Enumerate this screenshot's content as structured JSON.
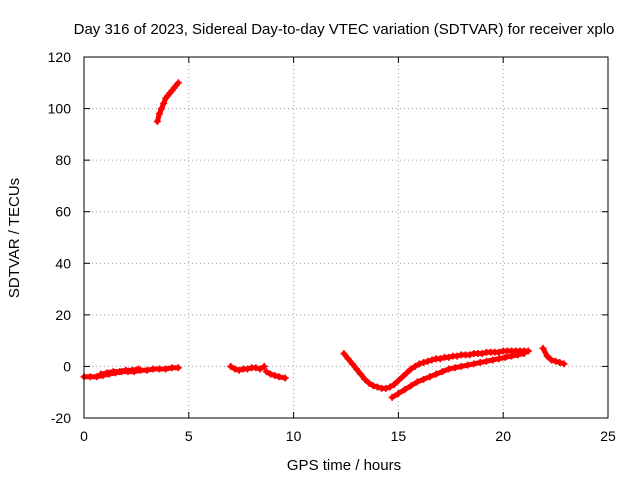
{
  "chart_data": {
    "type": "scatter",
    "title": "Day 316 of 2023, Sidereal Day-to-day VTEC variation (SDTVAR) for receiver xplo",
    "xlabel": "GPS time / hours",
    "ylabel": "SDTVAR / TECUs",
    "xlim": [
      0,
      25
    ],
    "ylim": [
      -20,
      120
    ],
    "xticks": [
      "0",
      "5",
      "10",
      "15",
      "20",
      "25"
    ],
    "yticks": [
      "-20",
      "0",
      "20",
      "40",
      "60",
      "80",
      "100",
      "120"
    ],
    "grid": true,
    "marker": "+",
    "color": "#ff0000",
    "series": [
      {
        "name": "arc-high",
        "x": [
          3.5,
          3.6,
          3.7,
          3.8,
          3.9,
          4.0,
          4.1,
          4.2,
          4.3,
          4.4,
          4.5
        ],
        "y": [
          95,
          98,
          100,
          102,
          104,
          105,
          106,
          107,
          108,
          109,
          110
        ]
      },
      {
        "name": "arc-low-1",
        "x": [
          0.0,
          0.3,
          0.6,
          0.9,
          1.2,
          1.5,
          1.8,
          2.1,
          2.4,
          2.7,
          3.0,
          3.3,
          3.6,
          3.9,
          4.2,
          4.5
        ],
        "y": [
          -4,
          -4,
          -4,
          -3.5,
          -3,
          -2.5,
          -2,
          -2,
          -2,
          -1.5,
          -1.5,
          -1,
          -1,
          -1,
          -0.5,
          -0.5
        ]
      },
      {
        "name": "arc-low-2",
        "x": [
          0.8,
          1.1,
          1.4,
          1.7,
          2.0,
          2.3,
          2.6
        ],
        "y": [
          -3,
          -2.5,
          -2,
          -2,
          -1.5,
          -1.5,
          -1
        ]
      },
      {
        "name": "arc-7h",
        "x": [
          7.0,
          7.2,
          7.4,
          7.6,
          7.8,
          8.0,
          8.2,
          8.4,
          8.6
        ],
        "y": [
          0,
          -1,
          -1.5,
          -1,
          -1,
          -0.5,
          -0.5,
          -1,
          0
        ]
      },
      {
        "name": "arc-9h",
        "x": [
          8.7,
          8.9,
          9.1,
          9.3,
          9.6
        ],
        "y": [
          -2,
          -3,
          -3.5,
          -4,
          -4.5
        ]
      },
      {
        "name": "arc-dip",
        "x": [
          12.4,
          12.6,
          12.8,
          13.0,
          13.2,
          13.4,
          13.6,
          13.8,
          14.0,
          14.2,
          14.4,
          14.6,
          14.8,
          15.0,
          15.2,
          15.4,
          15.6,
          15.8,
          16.0,
          16.2,
          16.4,
          16.6,
          16.8,
          17.0,
          17.2,
          17.4,
          17.6,
          17.8,
          18.0,
          18.2,
          18.4,
          18.6,
          18.8,
          19.0,
          19.2,
          19.4,
          19.6,
          19.8,
          20.0,
          20.2,
          20.4,
          20.6,
          20.8,
          21.0,
          21.2
        ],
        "y": [
          5,
          3,
          1,
          -1,
          -3,
          -5,
          -6.5,
          -7.5,
          -8,
          -8.5,
          -8.5,
          -8,
          -7,
          -5.5,
          -4,
          -2.5,
          -1,
          0,
          1,
          1.5,
          2,
          2.5,
          3,
          3,
          3.5,
          3.5,
          4,
          4,
          4.5,
          4.5,
          4.5,
          5,
          5,
          5,
          5.5,
          5.5,
          5.5,
          5.5,
          6,
          6,
          6,
          6,
          6,
          6,
          6
        ]
      },
      {
        "name": "arc-lower",
        "x": [
          14.7,
          15.0,
          15.3,
          15.6,
          15.9,
          16.2,
          16.5,
          16.8,
          17.1,
          17.4,
          17.7,
          18.0,
          18.3,
          18.6,
          18.9,
          19.2,
          19.5,
          19.8,
          20.1,
          20.4,
          20.7,
          21.0
        ],
        "y": [
          -12,
          -10.5,
          -9,
          -7.5,
          -6,
          -5,
          -4,
          -3,
          -2,
          -1,
          -0.5,
          0,
          0.5,
          1,
          1.5,
          2,
          2.5,
          3,
          3.5,
          4,
          4.5,
          5
        ]
      },
      {
        "name": "arc-late",
        "x": [
          21.9,
          22.1,
          22.3,
          22.5,
          22.7,
          22.9
        ],
        "y": [
          7,
          4,
          2.5,
          2,
          1.5,
          1
        ]
      }
    ]
  }
}
